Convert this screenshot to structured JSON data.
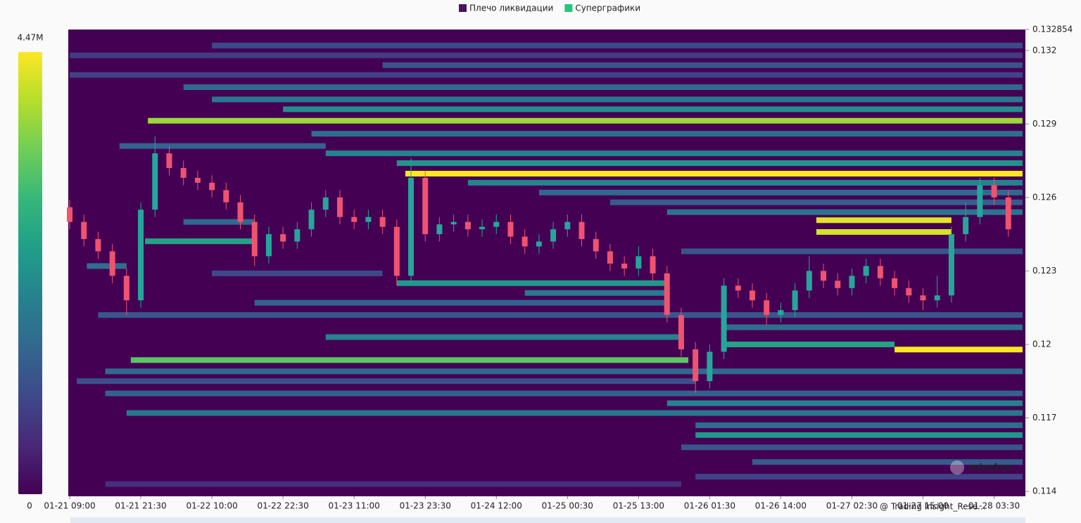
{
  "chart_data": {
    "type": "liquidation-heatmap",
    "legend": "top",
    "series": [
      {
        "name": "Плечо ликвидации",
        "color": "#4a1260",
        "prices": [
          0.1322,
          0.1318,
          0.1314,
          0.131,
          0.1305,
          0.13,
          0.1296,
          0.12913,
          0.1286,
          0.1281,
          0.1278,
          0.1274,
          0.12697,
          0.1266,
          0.1262,
          0.1258,
          0.1254,
          0.12507,
          0.12459,
          0.125,
          0.12421,
          0.1238,
          0.1232,
          0.1229,
          0.1225,
          0.1221,
          0.1217,
          0.1212,
          0.1207,
          0.1203,
          0.11979,
          0.12,
          0.11936,
          0.1189,
          0.1185,
          0.118,
          0.1176,
          0.1172,
          0.1167,
          0.1163,
          0.1158,
          0.1152,
          0.1146,
          0.1143
        ],
        "starts": [
          10,
          0,
          22,
          0,
          8,
          10,
          15,
          5.5,
          17,
          3.5,
          18,
          23,
          23.6,
          28,
          33,
          38,
          42,
          52.5,
          52.5,
          8,
          5.3,
          43,
          1.2,
          10,
          23,
          32,
          13,
          2,
          46,
          18,
          58,
          46,
          4.3,
          2.5,
          0.5,
          2.5,
          42,
          4,
          44,
          44,
          43,
          48,
          44,
          2.5
        ],
        "ends": [
          67,
          67,
          67,
          67,
          67,
          67,
          67,
          67,
          67,
          18,
          67,
          67,
          67,
          67,
          67,
          67,
          67,
          62,
          62,
          13,
          13,
          67,
          4,
          22,
          42,
          42,
          42,
          67,
          67,
          43,
          67,
          58,
          43.5,
          67,
          44,
          67,
          67,
          67,
          67,
          67,
          67,
          67,
          67,
          43
        ],
        "values": [
          1.0,
          0.8,
          1.2,
          0.9,
          1.5,
          1.8,
          2.2,
          3.8,
          1.6,
          1.4,
          2.0,
          2.3,
          4.47,
          2.0,
          1.5,
          1.3,
          1.7,
          4.3,
          4.2,
          1.5,
          2.6,
          1.2,
          1.6,
          1.0,
          2.4,
          1.8,
          1.4,
          1.2,
          1.6,
          2.0,
          4.47,
          2.6,
          3.3,
          1.5,
          1.1,
          1.4,
          2.0,
          1.8,
          1.6,
          2.4,
          1.2,
          1.3,
          0.9,
          0.6
        ]
      },
      {
        "name": "Суперграфики",
        "color": "#22c77a",
        "up_color": "#26a69a",
        "down_color": "#ef5370",
        "open": [
          0.1256,
          0.125,
          0.1243,
          0.1238,
          0.1228,
          0.1218,
          0.1255,
          0.1278,
          0.1272,
          0.1268,
          0.1266,
          0.1263,
          0.1258,
          0.125,
          0.1236,
          0.1245,
          0.1242,
          0.1247,
          0.1255,
          0.126,
          0.1252,
          0.125,
          0.1252,
          0.1248,
          0.1228,
          0.1268,
          0.1245,
          0.1249,
          0.125,
          0.1247,
          0.1248,
          0.125,
          0.1244,
          0.124,
          0.1242,
          0.1247,
          0.125,
          0.1243,
          0.1238,
          0.1233,
          0.1231,
          0.1236,
          0.1229,
          0.1212,
          0.1198,
          0.1185,
          0.1197,
          0.1224,
          0.1222,
          0.1218,
          0.1212,
          0.1214,
          0.1222,
          0.123,
          0.1226,
          0.1223,
          0.1228,
          0.1232,
          0.1227,
          0.1223,
          0.122,
          0.1218,
          0.122,
          0.1245,
          0.1252,
          0.1265,
          0.126
        ],
        "high": [
          0.1259,
          0.1253,
          0.1246,
          0.1241,
          0.1231,
          0.1258,
          0.1285,
          0.1281,
          0.1275,
          0.1271,
          0.1269,
          0.1266,
          0.1261,
          0.1253,
          0.1248,
          0.1248,
          0.125,
          0.1258,
          0.1263,
          0.1263,
          0.1255,
          0.1255,
          0.1255,
          0.1251,
          0.1276,
          0.1271,
          0.1252,
          0.1253,
          0.1253,
          0.1251,
          0.1253,
          0.1253,
          0.1247,
          0.1245,
          0.125,
          0.1253,
          0.1253,
          0.1246,
          0.1241,
          0.1236,
          0.124,
          0.1239,
          0.1232,
          0.1215,
          0.1201,
          0.12,
          0.1227,
          0.1227,
          0.1225,
          0.1221,
          0.1217,
          0.1225,
          0.1236,
          0.1233,
          0.1229,
          0.1231,
          0.1235,
          0.1235,
          0.123,
          0.1226,
          0.1223,
          0.1228,
          0.1248,
          0.1258,
          0.1268,
          0.1268,
          0.1263
        ],
        "low": [
          0.1247,
          0.124,
          0.1235,
          0.1225,
          0.1212,
          0.1215,
          0.1252,
          0.1269,
          0.1265,
          0.1263,
          0.126,
          0.1255,
          0.1247,
          0.1232,
          0.1233,
          0.1239,
          0.1239,
          0.1244,
          0.1252,
          0.1249,
          0.1247,
          0.1247,
          0.1245,
          0.1224,
          0.1225,
          0.1242,
          0.1242,
          0.1246,
          0.1244,
          0.1244,
          0.1245,
          0.1241,
          0.1237,
          0.1237,
          0.1239,
          0.1244,
          0.124,
          0.1235,
          0.123,
          0.1228,
          0.1228,
          0.1226,
          0.1209,
          0.1195,
          0.118,
          0.1182,
          0.1194,
          0.1219,
          0.1215,
          0.1208,
          0.1209,
          0.1211,
          0.1219,
          0.1223,
          0.122,
          0.122,
          0.1225,
          0.1224,
          0.122,
          0.1217,
          0.1214,
          0.1215,
          0.1217,
          0.1242,
          0.1249,
          0.1257,
          0.1244
        ],
        "close": [
          0.125,
          0.1243,
          0.1238,
          0.1228,
          0.1218,
          0.1255,
          0.1278,
          0.1272,
          0.1268,
          0.1266,
          0.1263,
          0.1258,
          0.125,
          0.1236,
          0.1245,
          0.1242,
          0.1247,
          0.1255,
          0.126,
          0.1252,
          0.125,
          0.1252,
          0.1248,
          0.1228,
          0.1268,
          0.1245,
          0.1249,
          0.125,
          0.1247,
          0.1248,
          0.125,
          0.1244,
          0.124,
          0.1242,
          0.1247,
          0.125,
          0.1243,
          0.1238,
          0.1233,
          0.1231,
          0.1236,
          0.1229,
          0.1212,
          0.1198,
          0.1185,
          0.1197,
          0.1224,
          0.1222,
          0.1218,
          0.1212,
          0.1214,
          0.1222,
          0.123,
          0.1226,
          0.1223,
          0.1228,
          0.1232,
          0.1227,
          0.1223,
          0.122,
          0.1218,
          0.122,
          0.1245,
          0.1252,
          0.1265,
          0.126,
          0.1247
        ]
      }
    ],
    "xlim": [
      -0.1,
      67.2
    ],
    "xticks": [
      {
        "value": 0,
        "label": "01-21 09:00"
      },
      {
        "value": 5,
        "label": "01-21 21:30"
      },
      {
        "value": 10,
        "label": "01-22 10:00"
      },
      {
        "value": 15,
        "label": "01-22 22:30"
      },
      {
        "value": 20,
        "label": "01-23 11:00"
      },
      {
        "value": 25,
        "label": "01-23 23:30"
      },
      {
        "value": 30,
        "label": "01-24 12:00"
      },
      {
        "value": 35,
        "label": "01-25 00:30"
      },
      {
        "value": 40,
        "label": "01-25 13:00"
      },
      {
        "value": 45,
        "label": "01-26 01:30"
      },
      {
        "value": 50,
        "label": "01-26 14:00"
      },
      {
        "value": 55,
        "label": "01-27 02:30"
      },
      {
        "value": 60,
        "label": "01-27 15:00"
      },
      {
        "value": 65,
        "label": "01-28 03:30"
      }
    ],
    "ylim": [
      0.1138,
      0.132854
    ],
    "yticks": [
      0.114,
      0.117,
      {
        "value": 0.12,
        "label": "0.12"
      },
      0.123,
      0.126,
      0.129,
      0.132,
      0.132854
    ],
    "colorbar": {
      "range": [
        0,
        4.47
      ],
      "ticks": [
        0,
        {
          "value": 4.47,
          "label": "4.47M"
        }
      ]
    },
    "watermarks": [
      "coinglass",
      "@ Trading Insight_Rese..."
    ]
  }
}
